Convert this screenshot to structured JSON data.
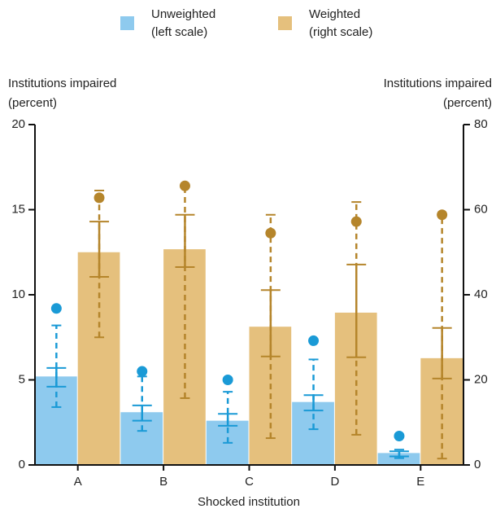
{
  "chart_data": {
    "type": "bar",
    "xlabel": "Shocked institution",
    "ylabel": "Institutions impaired",
    "yunit": "(percent)",
    "y2label": "Institutions impaired",
    "y2unit": "(percent)",
    "categories": [
      "A",
      "B",
      "C",
      "D",
      "E"
    ],
    "ylim": [
      0,
      20
    ],
    "yticks": [
      0,
      5,
      10,
      15,
      20
    ],
    "y2lim": [
      0,
      80
    ],
    "y2ticks": [
      0,
      20,
      40,
      60,
      80
    ],
    "series": [
      {
        "name": "Unweighted",
        "scale_label": "(left scale)",
        "color": "#8ecaee",
        "line_color": "#1a9ad6",
        "values": [
          5.2,
          3.1,
          2.6,
          3.7,
          0.7
        ],
        "outer_low": [
          3.4,
          2.0,
          1.3,
          2.1,
          0.4
        ],
        "outer_high": [
          8.2,
          5.2,
          4.3,
          6.2,
          0.9
        ],
        "inner_low": [
          4.6,
          2.6,
          2.3,
          3.2,
          0.5
        ],
        "inner_high": [
          5.7,
          3.5,
          3.0,
          4.1,
          0.8
        ],
        "points": [
          9.2,
          5.5,
          5.0,
          7.3,
          1.7
        ]
      },
      {
        "name": "Weighted",
        "scale_label": "(right scale)",
        "color": "#e5c07d",
        "line_color": "#b5852b",
        "axis": "y2",
        "values": [
          50.0,
          50.7,
          32.5,
          35.8,
          25.1
        ],
        "outer_low": [
          30.0,
          15.7,
          6.3,
          7.1,
          1.5
        ],
        "outer_high": [
          64.5,
          65.5,
          58.8,
          61.8,
          58.8
        ],
        "inner_low": [
          44.2,
          46.5,
          25.5,
          25.3,
          20.3
        ],
        "inner_high": [
          57.2,
          58.8,
          41.1,
          47.1,
          32.2
        ],
        "points": [
          62.8,
          65.6,
          54.5,
          57.2,
          58.8
        ]
      }
    ]
  }
}
